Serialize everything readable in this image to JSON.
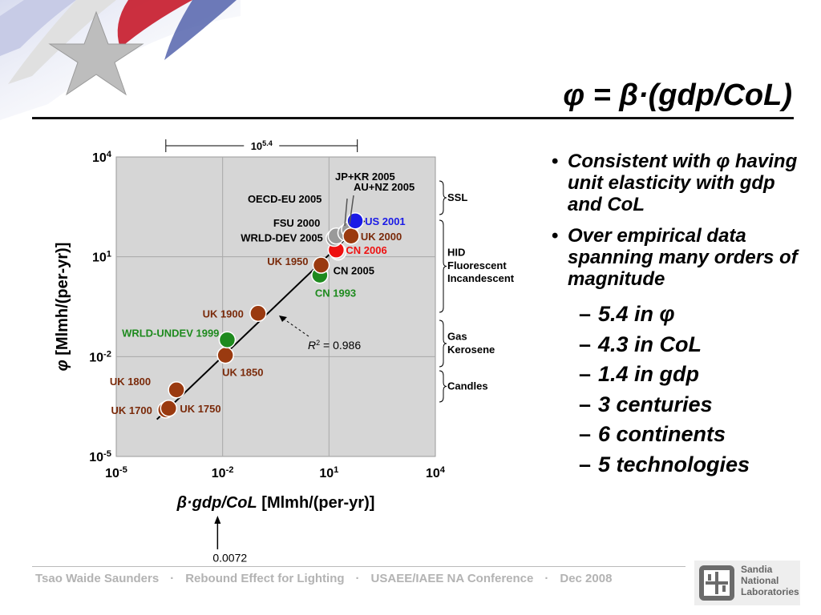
{
  "slide": {
    "title": "φ = β·(gdp/CoL)",
    "bullets": [
      {
        "text": "Consistent with φ having unit elasticity with gdp and CoL",
        "sub": []
      },
      {
        "text": "Over empirical data spanning many orders of magnitude",
        "sub": [
          "5.4 in φ",
          "4.3 in CoL",
          "1.4 in gdp",
          "3 centuries",
          "6 continents",
          "5 technologies"
        ]
      }
    ],
    "footer": [
      "Tsao Waide Saunders",
      "Rebound Effect for Lighting",
      "USAEE/IAEE NA Conference",
      "Dec 2008"
    ],
    "logo_text": [
      "Sandia",
      "National",
      "Laboratories"
    ]
  },
  "chart_data": {
    "type": "scatter",
    "xscale": "log",
    "yscale": "log",
    "xlim": [
      1e-05,
      10000
    ],
    "ylim": [
      1e-05,
      10000
    ],
    "xticks": [
      {
        "base": "10",
        "exp": "-5"
      },
      {
        "base": "10",
        "exp": "-2"
      },
      {
        "base": "10",
        "exp": "1"
      },
      {
        "base": "10",
        "exp": "4"
      }
    ],
    "yticks": [
      {
        "base": "10",
        "exp": "4"
      },
      {
        "base": "10",
        "exp": "1"
      },
      {
        "base": "10",
        "exp": "-2"
      },
      {
        "base": "10",
        "exp": "-5"
      }
    ],
    "grid": true,
    "xlabel_italic": "β·gdp/CoL",
    "xlabel_rest": " [Mlmh/(per-yr)]",
    "ylabel_italic": "φ",
    "ylabel_rest": " [Mlmh/(per-yr)]",
    "fit_r2_label": "= 0.986",
    "span_label_base": "10",
    "span_label_exp": "5.4",
    "span_x": [
      0.00025,
      63
    ],
    "x_annotation": "0.0072",
    "x_annotation_value": 0.0072,
    "fit_line": [
      [
        0.00014,
        0.00013
      ],
      [
        100,
        120
      ]
    ],
    "points": [
      {
        "label": "UK 1700",
        "x": 0.00025,
        "y": 0.00025,
        "color": "#9a3a10"
      },
      {
        "label": "UK 1750",
        "x": 0.0003,
        "y": 0.00028,
        "color": "#9a3a10"
      },
      {
        "label": "UK 1800",
        "x": 0.0005,
        "y": 0.001,
        "color": "#9a3a10"
      },
      {
        "label": "UK 1850",
        "x": 0.012,
        "y": 0.011,
        "color": "#9a3a10"
      },
      {
        "label": "WRLD-UNDEV 1999",
        "x": 0.0135,
        "y": 0.032,
        "color": "#1e8a1e"
      },
      {
        "label": "UK 1900",
        "x": 0.1,
        "y": 0.2,
        "color": "#9a3a10"
      },
      {
        "label": "CN 1993",
        "x": 5.5,
        "y": 2.8,
        "color": "#1e8a1e"
      },
      {
        "label": "UK 1950",
        "x": 6,
        "y": 5.6,
        "color": "#9a3a10"
      },
      {
        "label": "CN 2005",
        "x": 18,
        "y": 14,
        "color": "#d9d9d9"
      },
      {
        "label": "CN 2006",
        "x": 16,
        "y": 16,
        "color": "#ee1111"
      },
      {
        "label": "WRLD-DEV 2005",
        "x": 14,
        "y": 36,
        "color": "#9a9a9a"
      },
      {
        "label": "FSU 2000",
        "x": 16,
        "y": 42,
        "color": "#9a9a9a"
      },
      {
        "label": "OECD-EU 2005",
        "x": 30,
        "y": 52,
        "color": "#9a9a9a"
      },
      {
        "label": "JP+KR 2005",
        "x": 38,
        "y": 65,
        "color": "#9a9a9a"
      },
      {
        "label": "UK 2000",
        "x": 42,
        "y": 42,
        "color": "#9a3a10"
      },
      {
        "label": "US 2001",
        "x": 55,
        "y": 120,
        "color": "#1a1ae6"
      }
    ],
    "annotations": [
      {
        "label": "AU+NZ 2005"
      }
    ],
    "categories": [
      {
        "label": "SSL"
      },
      {
        "label": "HID\nFluorescent\nIncandescent"
      },
      {
        "label": "Gas\nKerosene"
      },
      {
        "label": "Candles"
      }
    ]
  }
}
